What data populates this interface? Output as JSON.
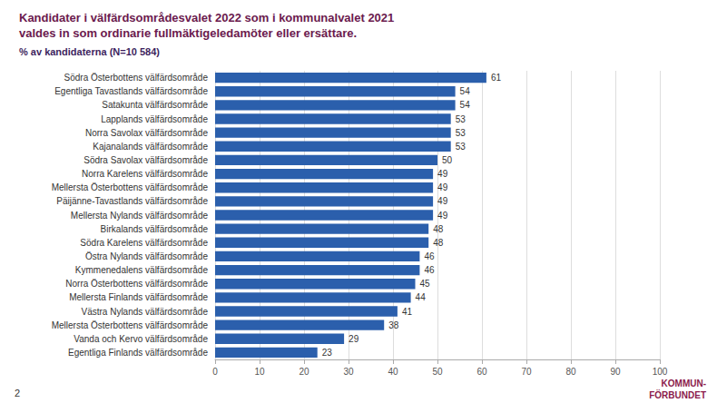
{
  "chart_data": {
    "type": "bar",
    "orientation": "horizontal",
    "title": "Kandidater i välfärdsområdesvalet 2022 som i kommunalvalet 2021\nvaldes in som ordinarie fullmäktigeledamöter eller ersättare.",
    "subtitle": "% av kandidaterna (N=10 584)",
    "categories": [
      "Södra Österbottens välfärdsområde",
      "Egentliga Tavastlands välfärdsområde",
      "Satakunta välfärdsområde",
      "Lapplands välfärdsområde",
      "Norra Savolax välfärdsområde",
      "Kajanalands välfärdsområde",
      "Södra Savolax välfärdsområde",
      "Norra Karelens välfärdsområde",
      "Mellersta Österbottens välfärdsområde",
      "Päijänne-Tavastlands välfärdsområde",
      "Mellersta Nylands välfärdsområde",
      "Birkalands välfärdsområde",
      "Södra Karelens välfärdsområde",
      "Östra Nylands välfärdsområde",
      "Kymmenedalens välfärdsområde",
      "Norra Österbottens välfärdsområde",
      "Mellersta Finlands välfärdsområde",
      "Västra Nylands välfärdsområde",
      "Mellersta Österbottens välfärdsområde",
      "Vanda och Kervo välfärdsområde",
      "Egentliga Finlands välfärdsområde"
    ],
    "values": [
      61,
      54,
      54,
      53,
      53,
      53,
      50,
      49,
      49,
      49,
      49,
      48,
      48,
      46,
      46,
      45,
      44,
      41,
      38,
      29,
      23
    ],
    "color": "#2b5fac",
    "xlim": [
      0,
      100
    ],
    "xticks": [
      0,
      10,
      20,
      30,
      40,
      50,
      60,
      70,
      80,
      90,
      100
    ],
    "grid": true,
    "data_labels": true,
    "annotations": [
      "2",
      "KOMMUN-",
      "FÖRBUNDET"
    ]
  }
}
